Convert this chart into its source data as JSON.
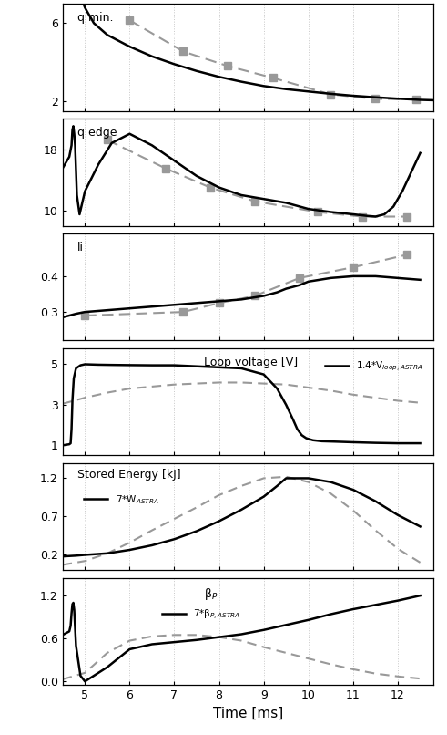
{
  "fig_width": 4.91,
  "fig_height": 8.06,
  "dpi": 100,
  "background_color": "#ffffff",
  "grid_color": "#c8c8c8",
  "solid_color": "#000000",
  "dashed_color": "#999999",
  "x_label": "Time [ms]",
  "x_ticks": [
    5,
    6,
    7,
    8,
    9,
    10,
    11,
    12
  ],
  "x_lim": [
    4.5,
    12.8
  ],
  "panel0_label": "q min.",
  "panel0_ylim": [
    1.5,
    7.0
  ],
  "panel0_yticks": [
    2,
    6
  ],
  "panel0_solid_x": [
    4.5,
    4.6,
    4.7,
    4.8,
    4.9,
    5.0,
    5.2,
    5.5,
    6.0,
    6.5,
    7.0,
    7.5,
    8.0,
    8.5,
    9.0,
    9.5,
    10.0,
    10.5,
    11.0,
    11.5,
    12.0,
    12.5,
    12.8
  ],
  "panel0_solid_y": [
    12.0,
    10.5,
    9.2,
    8.2,
    7.4,
    6.8,
    6.0,
    5.4,
    4.8,
    4.3,
    3.9,
    3.55,
    3.25,
    3.0,
    2.78,
    2.62,
    2.5,
    2.38,
    2.28,
    2.2,
    2.13,
    2.07,
    2.05
  ],
  "panel0_dashed_x": [
    6.0,
    7.2,
    8.2,
    9.2,
    10.5,
    11.5,
    12.4
  ],
  "panel0_dashed_y": [
    6.15,
    4.55,
    3.8,
    3.2,
    2.35,
    2.12,
    2.1
  ],
  "panel1_label": "q edge",
  "panel1_ylim": [
    8.0,
    22.0
  ],
  "panel1_yticks": [
    10,
    18
  ],
  "panel1_solid_x": [
    4.5,
    4.65,
    4.7,
    4.72,
    4.74,
    4.76,
    4.78,
    4.82,
    4.88,
    5.0,
    5.3,
    5.6,
    6.0,
    6.5,
    7.0,
    7.5,
    8.0,
    8.5,
    9.0,
    9.5,
    10.0,
    10.5,
    11.0,
    11.3,
    11.5,
    11.7,
    11.9,
    12.1,
    12.3,
    12.5
  ],
  "panel1_solid_y": [
    15.5,
    17.0,
    18.5,
    20.5,
    21.0,
    20.0,
    18.5,
    12.0,
    9.5,
    12.5,
    16.0,
    18.8,
    20.0,
    18.5,
    16.5,
    14.5,
    13.0,
    12.0,
    11.5,
    11.0,
    10.2,
    9.8,
    9.5,
    9.3,
    9.2,
    9.5,
    10.5,
    12.5,
    15.0,
    17.5
  ],
  "panel1_dashed_x": [
    5.5,
    6.8,
    7.8,
    8.8,
    10.2,
    11.2,
    12.2
  ],
  "panel1_dashed_y": [
    19.2,
    15.5,
    13.0,
    11.2,
    9.8,
    9.2,
    9.2
  ],
  "panel2_label": "li",
  "panel2_ylim": [
    0.22,
    0.52
  ],
  "panel2_yticks": [
    0.3,
    0.4
  ],
  "panel2_solid_x": [
    4.5,
    4.8,
    5.0,
    5.5,
    6.0,
    6.5,
    7.0,
    7.5,
    8.0,
    8.5,
    9.0,
    9.3,
    9.5,
    9.8,
    10.0,
    10.5,
    11.0,
    11.5,
    12.0,
    12.5
  ],
  "panel2_solid_y": [
    0.285,
    0.295,
    0.3,
    0.305,
    0.31,
    0.315,
    0.32,
    0.325,
    0.33,
    0.335,
    0.345,
    0.355,
    0.365,
    0.375,
    0.385,
    0.395,
    0.4,
    0.4,
    0.395,
    0.39
  ],
  "panel2_dashed_x": [
    5.0,
    7.2,
    8.0,
    8.8,
    9.8,
    11.0,
    12.2
  ],
  "panel2_dashed_y": [
    0.29,
    0.3,
    0.325,
    0.345,
    0.395,
    0.425,
    0.46
  ],
  "panel3_label": "Loop voltage [V]",
  "panel3_legend": "1.4*V$_{loop,ASTRA}$",
  "panel3_ylim": [
    0.5,
    5.8
  ],
  "panel3_yticks": [
    1,
    3,
    5
  ],
  "panel3_solid_x": [
    4.5,
    4.65,
    4.68,
    4.7,
    4.72,
    4.75,
    4.8,
    4.9,
    5.0,
    5.3,
    5.6,
    6.0,
    6.5,
    7.0,
    7.5,
    8.0,
    8.5,
    9.0,
    9.3,
    9.5,
    9.65,
    9.75,
    9.85,
    9.95,
    10.1,
    10.3,
    10.6,
    11.0,
    11.5,
    12.0,
    12.5
  ],
  "panel3_solid_y": [
    1.0,
    1.05,
    1.1,
    1.8,
    3.2,
    4.3,
    4.8,
    4.95,
    5.0,
    4.98,
    4.97,
    4.96,
    4.95,
    4.95,
    4.9,
    4.85,
    4.8,
    4.5,
    3.8,
    3.0,
    2.3,
    1.8,
    1.5,
    1.35,
    1.25,
    1.2,
    1.18,
    1.15,
    1.12,
    1.1,
    1.1
  ],
  "panel3_dashed_x": [
    4.5,
    5.0,
    5.5,
    6.0,
    6.5,
    7.0,
    7.5,
    8.0,
    8.5,
    9.0,
    9.5,
    10.0,
    10.5,
    11.0,
    11.5,
    12.0,
    12.5
  ],
  "panel3_dashed_y": [
    3.05,
    3.35,
    3.6,
    3.8,
    3.9,
    4.0,
    4.05,
    4.1,
    4.1,
    4.05,
    4.0,
    3.85,
    3.7,
    3.5,
    3.35,
    3.2,
    3.1
  ],
  "panel4_label": "Stored Energy [kJ]",
  "panel4_legend": "7*W$_{ASTRA}$",
  "panel4_ylim": [
    0.0,
    1.4
  ],
  "panel4_yticks": [
    0.2,
    0.7,
    1.2
  ],
  "panel4_solid_x": [
    4.5,
    4.8,
    5.0,
    5.5,
    6.0,
    6.5,
    7.0,
    7.5,
    8.0,
    8.5,
    9.0,
    9.3,
    9.5,
    10.0,
    10.5,
    11.0,
    11.5,
    12.0,
    12.5
  ],
  "panel4_solid_y": [
    0.18,
    0.19,
    0.2,
    0.22,
    0.265,
    0.325,
    0.405,
    0.51,
    0.64,
    0.79,
    0.96,
    1.1,
    1.2,
    1.2,
    1.15,
    1.05,
    0.9,
    0.72,
    0.57
  ],
  "panel4_dashed_x": [
    4.5,
    5.0,
    5.5,
    6.0,
    6.5,
    7.0,
    7.5,
    8.0,
    8.5,
    9.0,
    9.5,
    10.0,
    10.5,
    11.0,
    11.5,
    12.0,
    12.5
  ],
  "panel4_dashed_y": [
    0.07,
    0.12,
    0.22,
    0.36,
    0.52,
    0.67,
    0.82,
    0.98,
    1.1,
    1.2,
    1.22,
    1.15,
    1.0,
    0.78,
    0.52,
    0.28,
    0.1
  ],
  "panel5_label": "β$_P$",
  "panel5_legend": "7*β$_{P,ASTRA}$",
  "panel5_ylim": [
    -0.05,
    1.45
  ],
  "panel5_yticks": [
    0.0,
    0.6,
    1.2
  ],
  "panel5_solid_x": [
    4.5,
    4.65,
    4.68,
    4.7,
    4.72,
    4.74,
    4.76,
    4.8,
    4.9,
    5.0,
    5.5,
    6.0,
    6.5,
    7.0,
    7.5,
    8.0,
    8.5,
    9.0,
    9.5,
    10.0,
    10.5,
    11.0,
    11.5,
    12.0,
    12.5
  ],
  "panel5_solid_y": [
    0.65,
    0.7,
    0.78,
    0.95,
    1.08,
    1.1,
    1.0,
    0.5,
    0.08,
    0.0,
    0.2,
    0.45,
    0.52,
    0.55,
    0.58,
    0.62,
    0.66,
    0.72,
    0.79,
    0.86,
    0.94,
    1.01,
    1.07,
    1.13,
    1.2
  ],
  "panel5_dashed_x": [
    4.5,
    5.0,
    5.5,
    6.0,
    6.5,
    7.0,
    7.5,
    8.0,
    8.5,
    9.0,
    9.5,
    10.0,
    10.5,
    11.0,
    11.5,
    12.0,
    12.5
  ],
  "panel5_dashed_y": [
    0.03,
    0.12,
    0.4,
    0.57,
    0.63,
    0.65,
    0.65,
    0.62,
    0.57,
    0.48,
    0.4,
    0.32,
    0.24,
    0.17,
    0.11,
    0.07,
    0.04
  ]
}
